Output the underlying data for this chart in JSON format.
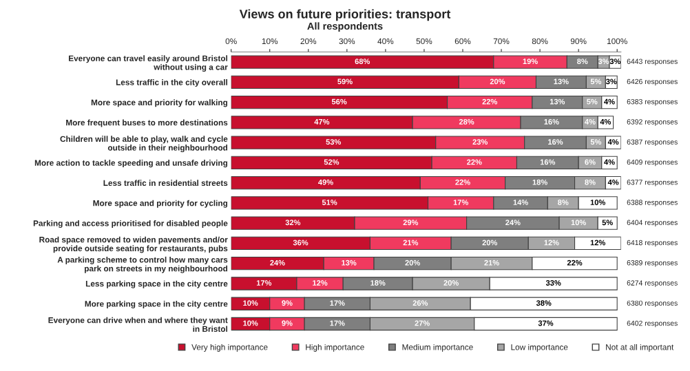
{
  "chart_data": {
    "type": "bar",
    "orientation": "horizontal",
    "stacked": true,
    "title": "Views on future priorities: transport",
    "subtitle": "All respondents",
    "categories": [
      "Everyone can travel easily around Bristol\nwithout using a car",
      "Less traffic in the city overall",
      "More space and priority for walking",
      "More frequent buses to more destinations",
      "Children will be able to play, walk and cycle\noutside in their neighbourhood",
      "More action to tackle speeding and unsafe driving",
      "Less traffic in residential streets",
      "More space and priority for cycling",
      "Parking and access prioritised for disabled people",
      "Road space removed to widen pavements and/or\nprovide outside seating for restaurants, pubs",
      "A parking scheme to control how many cars\npark on streets in my neighbourhood",
      "Less parking space in the city centre",
      "More parking space in the city centre",
      "Everyone can drive when and where they want\nin Bristol"
    ],
    "series": [
      {
        "name": "Very high importance",
        "color": "#c8102e",
        "values": [
          68,
          59,
          56,
          47,
          53,
          52,
          49,
          51,
          32,
          36,
          24,
          17,
          10,
          10
        ],
        "value_labels": [
          "68%",
          "59%",
          "56%",
          "47%",
          "53%",
          "52%",
          "49%",
          "51%",
          "32%",
          "36%",
          "24%",
          "17%",
          "10%",
          "10%"
        ]
      },
      {
        "name": "High importance",
        "color": "#f03a5f",
        "values": [
          19,
          20,
          22,
          28,
          23,
          22,
          22,
          17,
          29,
          21,
          13,
          12,
          9,
          9
        ],
        "value_labels": [
          "19%",
          "20%",
          "22%",
          "28%",
          "23%",
          "22%",
          "22%",
          "17%",
          "29%",
          "21%",
          "13%",
          "12%",
          "9%",
          "9%"
        ]
      },
      {
        "name": "Medium importance",
        "color": "#7f7f7f",
        "values": [
          8,
          13,
          13,
          16,
          16,
          16,
          18,
          14,
          24,
          20,
          20,
          18,
          17,
          17
        ],
        "value_labels": [
          "8%",
          "13%",
          "13%",
          "16%",
          "16%",
          "16%",
          "18%",
          "14%",
          "24%",
          "20%",
          "20%",
          "18%",
          "17%",
          "17%"
        ]
      },
      {
        "name": "Low importance",
        "color": "#a6a6a6",
        "values": [
          3,
          5,
          5,
          4,
          5,
          6,
          8,
          8,
          10,
          12,
          21,
          20,
          26,
          27
        ],
        "value_labels": [
          "3%",
          "5%",
          "5%",
          "4%",
          "5%",
          "6%",
          "8%",
          "8%",
          "10%",
          "12%",
          "21%",
          "20%",
          "26%",
          "27%"
        ]
      },
      {
        "name": "Not at all important",
        "color": "#ffffff",
        "values": [
          3,
          3,
          4,
          4,
          4,
          4,
          4,
          10,
          5,
          12,
          22,
          33,
          38,
          37
        ],
        "value_labels": [
          "3%",
          "3%",
          "4%",
          "4%",
          "4%",
          "4%",
          "4%",
          "10%",
          "5%",
          "12%",
          "22%",
          "33%",
          "38%",
          "37%"
        ]
      }
    ],
    "xlim": [
      0,
      101
    ],
    "xticks": [
      {
        "value": 0,
        "label": "0%"
      },
      {
        "value": 10,
        "label": "10%"
      },
      {
        "value": 20,
        "label": "20%"
      },
      {
        "value": 30,
        "label": "30%"
      },
      {
        "value": 40,
        "label": "40%"
      },
      {
        "value": 50,
        "label": "50%"
      },
      {
        "value": 60,
        "label": "60%"
      },
      {
        "value": 70,
        "label": "70%"
      },
      {
        "value": 80,
        "label": "80%"
      },
      {
        "value": 90,
        "label": "90%"
      },
      {
        "value": 100,
        "label": "100%"
      }
    ],
    "legend": "bottom",
    "grid": false,
    "annotations": [
      "6443 responses",
      "6426 responses",
      "6383 responses",
      "6392 responses",
      "6387 responses",
      "6409 responses",
      "6377 responses",
      "6388 responses",
      "6404 responses",
      "6418 responses",
      "6389 responses",
      "6274 responses",
      "6380 responses",
      "6402 responses"
    ]
  }
}
